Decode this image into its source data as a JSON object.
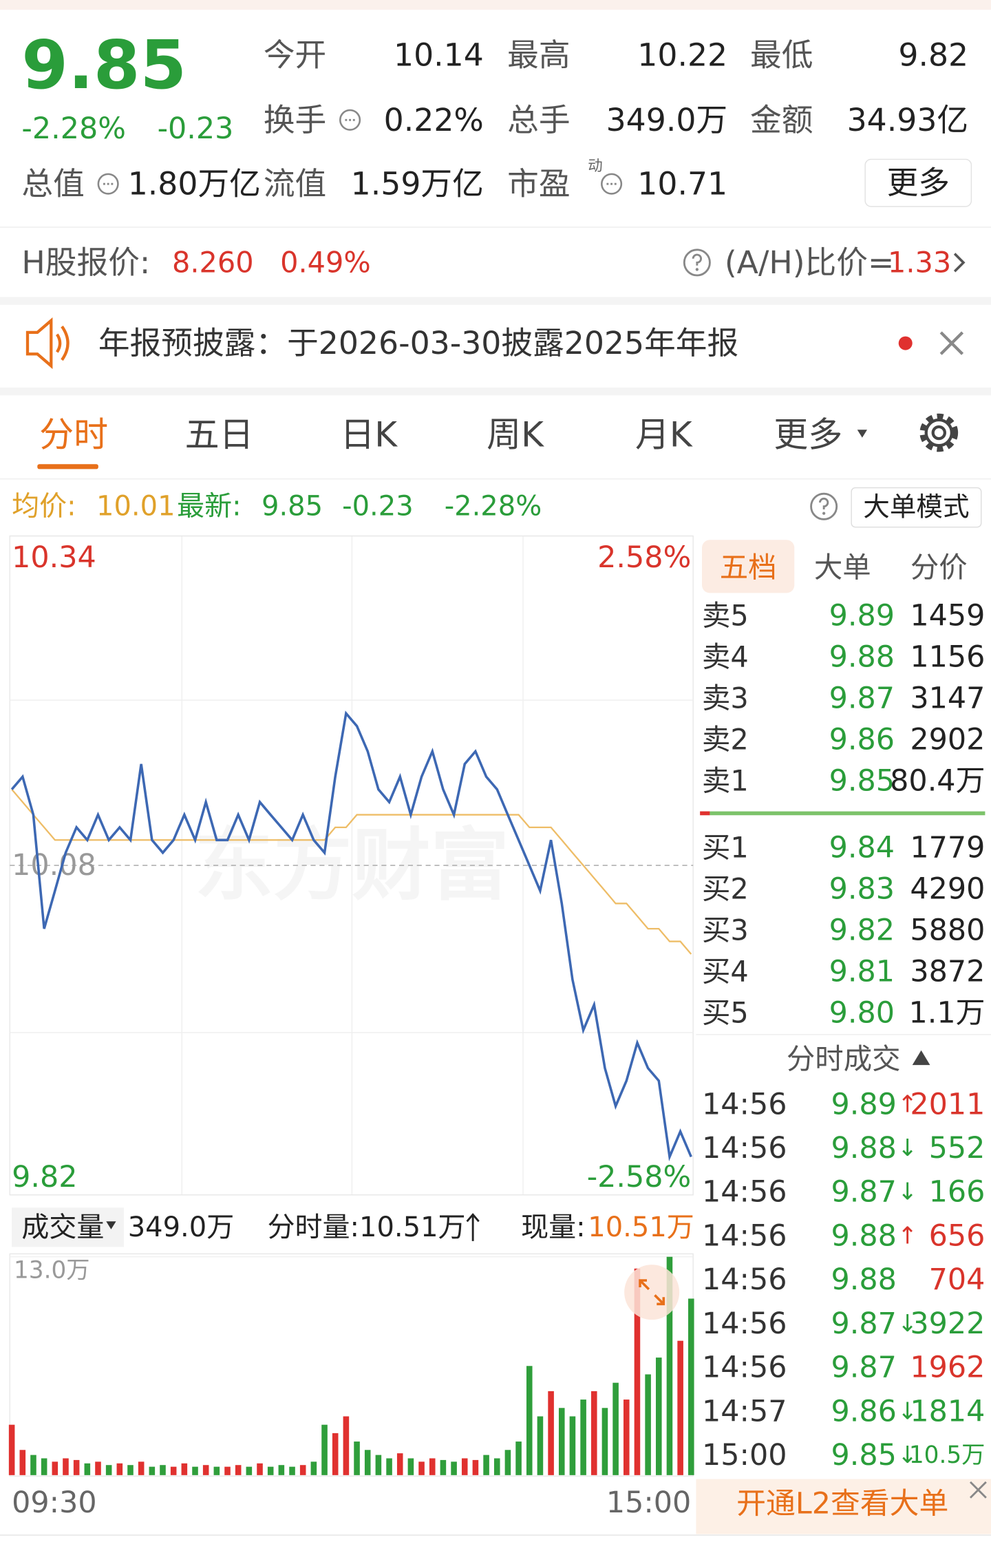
{
  "quote": {
    "price": "9.85",
    "change_pct": "-2.28%",
    "change": "-0.23"
  },
  "stats": [
    {
      "label": "今开",
      "value": "10.14"
    },
    {
      "label": "最高",
      "value": "10.22"
    },
    {
      "label": "最低",
      "value": "9.82"
    },
    {
      "label": "换手",
      "value": "0.22%"
    },
    {
      "label": "总手",
      "value": "349.0万"
    },
    {
      "label": "金额",
      "value": "34.93亿"
    },
    {
      "label": "总值",
      "value": "1.80万亿"
    },
    {
      "label": "流值",
      "value": "1.59万亿"
    },
    {
      "label": "市盈",
      "sup": "动",
      "value": "10.71"
    }
  ],
  "more_button": "更多",
  "h_share": {
    "label": "H股报价:",
    "price": "8.260",
    "change_pct": "0.49%",
    "ah_label": "(A/H)比价=",
    "ah_value": "1.33"
  },
  "notice": "年报预披露：于2026-03-30披露2025年年报",
  "tabs": [
    "分时",
    "五日",
    "日K",
    "周K",
    "月K",
    "更多"
  ],
  "info_bar": {
    "avg_label": "均价:",
    "avg": "10.01",
    "latest_label": "最新:",
    "latest": "9.85",
    "change": "-0.23",
    "change_pct": "-2.28%",
    "mode_button": "大单模式"
  },
  "chart_data": {
    "type": "line",
    "watermark": "东方财富",
    "series": [
      {
        "color": "#3d68b3",
        "values": [
          10.14,
          10.15,
          10.12,
          10.03,
          10.06,
          10.09,
          10.11,
          10.1,
          10.12,
          10.1,
          10.11,
          10.1,
          10.16,
          10.1,
          10.09,
          10.1,
          10.12,
          10.1,
          10.13,
          10.1,
          10.1,
          10.12,
          10.1,
          10.13,
          10.12,
          10.11,
          10.1,
          10.12,
          10.1,
          10.09,
          10.15,
          10.2,
          10.19,
          10.17,
          10.14,
          10.13,
          10.15,
          10.12,
          10.15,
          10.17,
          10.14,
          10.12,
          10.16,
          10.17,
          10.15,
          10.14,
          10.12,
          10.1,
          10.08,
          10.06,
          10.1,
          10.05,
          9.99,
          9.95,
          9.97,
          9.92,
          9.89,
          9.91,
          9.94,
          9.92,
          9.91,
          9.85,
          9.87,
          9.85
        ]
      },
      {
        "color": "#eebd67",
        "values": [
          10.14,
          10.13,
          10.12,
          10.11,
          10.1,
          10.1,
          10.1,
          10.1,
          10.1,
          10.1,
          10.1,
          10.1,
          10.1,
          10.1,
          10.1,
          10.1,
          10.1,
          10.1,
          10.1,
          10.1,
          10.1,
          10.1,
          10.1,
          10.1,
          10.1,
          10.1,
          10.1,
          10.1,
          10.1,
          10.1,
          10.11,
          10.11,
          10.12,
          10.12,
          10.12,
          10.12,
          10.12,
          10.12,
          10.12,
          10.12,
          10.12,
          10.12,
          10.12,
          10.12,
          10.12,
          10.12,
          10.12,
          10.12,
          10.11,
          10.11,
          10.11,
          10.1,
          10.09,
          10.08,
          10.07,
          10.06,
          10.05,
          10.05,
          10.04,
          10.03,
          10.03,
          10.02,
          10.02,
          10.01
        ]
      }
    ],
    "ylim": [
      9.82,
      10.34
    ],
    "yticks": [
      9.82,
      10.08,
      10.34
    ],
    "y2lim": [
      -2.58,
      2.58
    ],
    "y2ticks": [
      {
        "value": -2.58,
        "label": "-2.58%"
      },
      {
        "value": 2.58,
        "label": "2.58%"
      }
    ],
    "x_labels": [
      "09:30",
      "15:00"
    ],
    "up_color": "#d9342b",
    "down_color": "#2a9d3a"
  },
  "volume_chart": {
    "type": "bar",
    "label": "成交量",
    "total": "349.0万",
    "period_volume": "分时量:10.51万",
    "current_label": "现量:",
    "current": "10.51万",
    "ylim": [
      0,
      13.0
    ],
    "yticks": [
      {
        "value": 13.0,
        "label": "13.0万"
      }
    ],
    "values": [
      3.0,
      1.5,
      1.2,
      1.0,
      0.8,
      1.0,
      0.9,
      0.7,
      0.8,
      0.6,
      0.7,
      0.6,
      0.8,
      0.5,
      0.6,
      0.5,
      0.7,
      0.5,
      0.6,
      0.5,
      0.5,
      0.6,
      0.5,
      0.7,
      0.5,
      0.6,
      0.5,
      0.6,
      0.8,
      3.0,
      2.5,
      3.5,
      2.0,
      1.5,
      1.2,
      1.0,
      1.3,
      1.0,
      0.8,
      1.0,
      0.9,
      0.8,
      1.0,
      0.9,
      1.2,
      1.0,
      1.5,
      2.0,
      6.5,
      3.5,
      5.0,
      4.0,
      3.5,
      4.5,
      5.0,
      4.0,
      5.5,
      4.5,
      12.3,
      6.0,
      7.0,
      13.0,
      8.0,
      10.51
    ],
    "up_color": "#e0312f",
    "down_color": "#2f9e3b"
  },
  "order_book": {
    "tabs": [
      "五档",
      "大单",
      "分价"
    ],
    "asks": [
      {
        "label": "卖5",
        "price": "9.89",
        "volume": "1459"
      },
      {
        "label": "卖4",
        "price": "9.88",
        "volume": "1156"
      },
      {
        "label": "卖3",
        "price": "9.87",
        "volume": "3147"
      },
      {
        "label": "卖2",
        "price": "9.86",
        "volume": "2902"
      },
      {
        "label": "卖1",
        "price": "9.85",
        "volume": "80.4万"
      }
    ],
    "bids": [
      {
        "label": "买1",
        "price": "9.84",
        "volume": "1779"
      },
      {
        "label": "买2",
        "price": "9.83",
        "volume": "4290"
      },
      {
        "label": "买3",
        "price": "9.82",
        "volume": "5880"
      },
      {
        "label": "买4",
        "price": "9.81",
        "volume": "3872"
      },
      {
        "label": "买5",
        "price": "9.80",
        "volume": "1.1万"
      }
    ]
  },
  "trades": {
    "title": "分时成交",
    "rows": [
      {
        "time": "14:56",
        "price": "9.89",
        "arrow": "↑",
        "volume": "2011",
        "color": "#d9342b"
      },
      {
        "time": "14:56",
        "price": "9.88",
        "arrow": "↓",
        "volume": "552",
        "color": "#2a9d3a"
      },
      {
        "time": "14:56",
        "price": "9.87",
        "arrow": "↓",
        "volume": "166",
        "color": "#2a9d3a"
      },
      {
        "time": "14:56",
        "price": "9.88",
        "arrow": "↑",
        "volume": "656",
        "color": "#d9342b"
      },
      {
        "time": "14:56",
        "price": "9.88",
        "volume": "704",
        "color": "#d9342b"
      },
      {
        "time": "14:56",
        "price": "9.87",
        "arrow": "↓",
        "volume": "3922",
        "color": "#2a9d3a"
      },
      {
        "time": "14:56",
        "price": "9.87",
        "volume": "1962",
        "color": "#d9342b"
      },
      {
        "time": "14:57",
        "price": "9.86",
        "arrow": "↓",
        "volume": "1814",
        "color": "#2a9d3a"
      },
      {
        "time": "15:00",
        "price": "9.85",
        "arrow": "↓",
        "volume": "10.5万",
        "color": "#2a9d3a"
      }
    ]
  },
  "footer_button": "开通L2查看大单"
}
